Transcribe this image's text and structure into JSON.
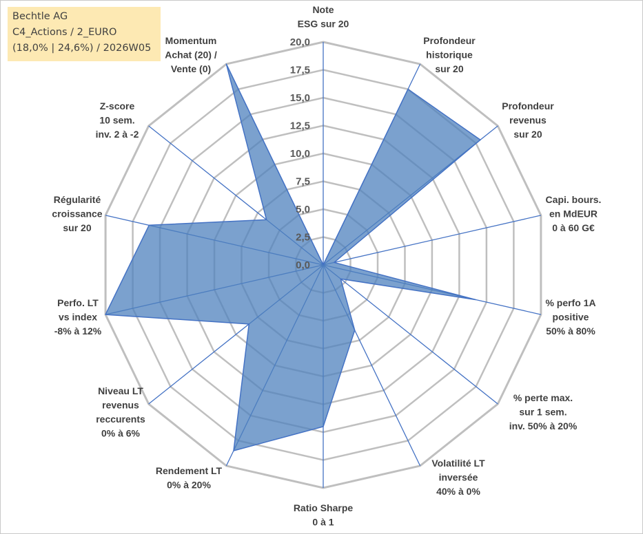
{
  "info": {
    "company": "Bechtle AG",
    "portfolio": "C4_Actions / 2_EURO",
    "stats": "(18,0% | 24,6%) / 2026W05"
  },
  "chart_data": {
    "type": "radar",
    "title": "",
    "rmax": 20,
    "ticks": [
      "0,0",
      "2,5",
      "5,0",
      "7,5",
      "10,0",
      "12,5",
      "15,0",
      "17,5",
      "20,0"
    ],
    "axes": [
      {
        "label": [
          "Note",
          "ESG sur 20"
        ],
        "value": 0
      },
      {
        "label": [
          "Profondeur",
          "historique",
          "sur 20"
        ],
        "value": 17.5
      },
      {
        "label": [
          "Profondeur",
          "revenus",
          "sur 20"
        ],
        "value": 18.0
      },
      {
        "label": [
          "Capi. bours.",
          "en MdEUR",
          "0 à 60 G€"
        ],
        "value": 1.0
      },
      {
        "label": [
          "% perfo 1A",
          "positive",
          "50% à 80%"
        ],
        "value": 14.0
      },
      {
        "label": [
          "% perte max.",
          "sur 1 sem.",
          "inv. 50% à 20%"
        ],
        "value": 2.0
      },
      {
        "label": [
          "Volatilité LT",
          "inversée",
          "40% à 0%"
        ],
        "value": 6.5
      },
      {
        "label": [
          "Ratio Sharpe",
          "0 à 1"
        ],
        "value": 14.5
      },
      {
        "label": [
          "Rendement LT",
          "0% à 20%"
        ],
        "value": 18.5
      },
      {
        "label": [
          "Niveau LT",
          "revenus",
          "reccurents",
          "0% à 6%"
        ],
        "value": 8.5
      },
      {
        "label": [
          "Perfo. LT",
          "vs index",
          "-8% à 12%"
        ],
        "value": 20.0
      },
      {
        "label": [
          "Régularité",
          "croissance",
          "sur 20"
        ],
        "value": 16.0
      },
      {
        "label": [
          "Z-score",
          "10 sem.",
          "inv. 2 à -2"
        ],
        "value": 6.5
      },
      {
        "label": [
          "Momentum",
          "Achat (20) /",
          "Vente (0)"
        ],
        "value": 20.0
      }
    ],
    "series": [
      {
        "name": "Bechtle AG"
      }
    ],
    "colors": {
      "fill": "#4f81bd",
      "fill_opacity": 0.75,
      "axis": "#4472c4",
      "grid": "#bfbfbf"
    }
  }
}
